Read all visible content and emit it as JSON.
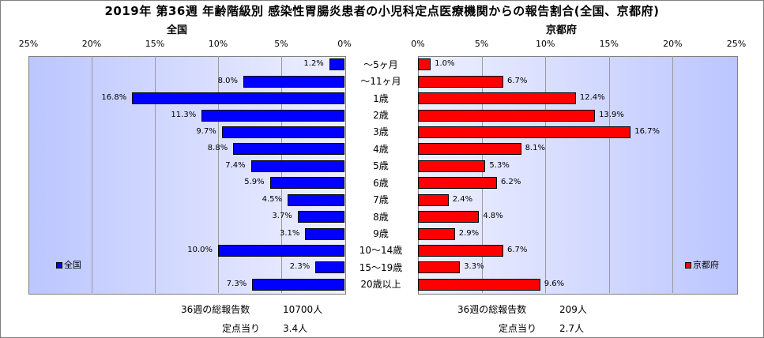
{
  "title": "2019年 第36週 年齢階級別 感染性胃腸炎患者の小児科定点医療機関からの報告割合(全国、京都府)",
  "chart_data": {
    "type": "bar",
    "orientation": "horizontal",
    "categories": [
      "～5ヶ月",
      "～11ヶ月",
      "1歳",
      "2歳",
      "3歳",
      "4歳",
      "5歳",
      "6歳",
      "7歳",
      "8歳",
      "9歳",
      "10～14歳",
      "15～19歳",
      "20歳以上"
    ],
    "xlim": [
      0,
      25
    ],
    "ticks": [
      "0%",
      "5%",
      "10%",
      "15%",
      "20%",
      "25%"
    ],
    "series": [
      {
        "name": "全国",
        "panel_title": "全国",
        "legend": "全国",
        "color": "#0000ff",
        "values": [
          1.2,
          8.0,
          16.8,
          11.3,
          9.7,
          8.8,
          7.4,
          5.9,
          4.5,
          3.7,
          3.1,
          10.0,
          2.3,
          7.3
        ],
        "labels": [
          "1.2%",
          "8.0%",
          "16.8%",
          "11.3%",
          "9.7%",
          "8.8%",
          "7.4%",
          "5.9%",
          "4.5%",
          "3.7%",
          "3.1%",
          "10.0%",
          "2.3%",
          "7.3%"
        ]
      },
      {
        "name": "京都府",
        "panel_title": "京都府",
        "legend": "京都府",
        "color": "#ff0000",
        "values": [
          1.0,
          6.7,
          12.4,
          13.9,
          16.7,
          8.1,
          5.3,
          6.2,
          2.4,
          4.8,
          2.9,
          6.7,
          3.3,
          9.6
        ],
        "labels": [
          "1.0%",
          "6.7%",
          "12.4%",
          "13.9%",
          "16.7%",
          "8.1%",
          "5.3%",
          "6.2%",
          "2.4%",
          "4.8%",
          "2.9%",
          "6.7%",
          "3.3%",
          "9.6%"
        ]
      }
    ],
    "grid": true
  },
  "summary": {
    "national": {
      "reports_label": "36週の総報告数",
      "reports_value": "10700人",
      "per_site_label": "定点当り",
      "per_site_value": "3.4人"
    },
    "kyoto": {
      "reports_label": "36週の総報告数",
      "reports_value": "209人",
      "per_site_label": "定点当り",
      "per_site_value": "2.7人"
    }
  }
}
